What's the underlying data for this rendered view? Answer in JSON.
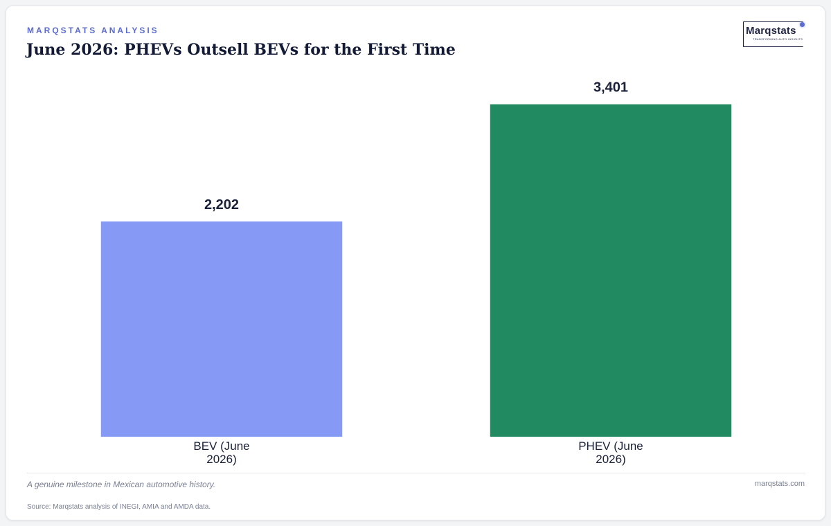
{
  "header": {
    "kicker": "MARQSTATS ANALYSIS",
    "title": "June 2026: PHEVs Outsell BEVs for the First Time"
  },
  "logo": {
    "wordmark": "Marqstats",
    "tagline": "TRANSFORMING AUTO INSIGHTS"
  },
  "chart_data": {
    "type": "bar",
    "title": "June 2026: PHEVs Outsell BEVs for the First Time",
    "xlabel": "",
    "ylabel": "",
    "categories": [
      [
        "BEV (June",
        "2026)"
      ],
      [
        "PHEV (June",
        "2026)"
      ]
    ],
    "values": [
      2202,
      3401
    ],
    "value_labels": [
      "2,202",
      "3,401"
    ],
    "colors": [
      "#8599f5",
      "#218a60"
    ],
    "ylim": [
      0,
      4050
    ],
    "grid": false,
    "legend": "none"
  },
  "footer": {
    "note": "A genuine milestone in Mexican automotive history.",
    "site": "marqstats.com",
    "source": "Source: Marqstats analysis of INEGI, AMIA and AMDA data."
  }
}
